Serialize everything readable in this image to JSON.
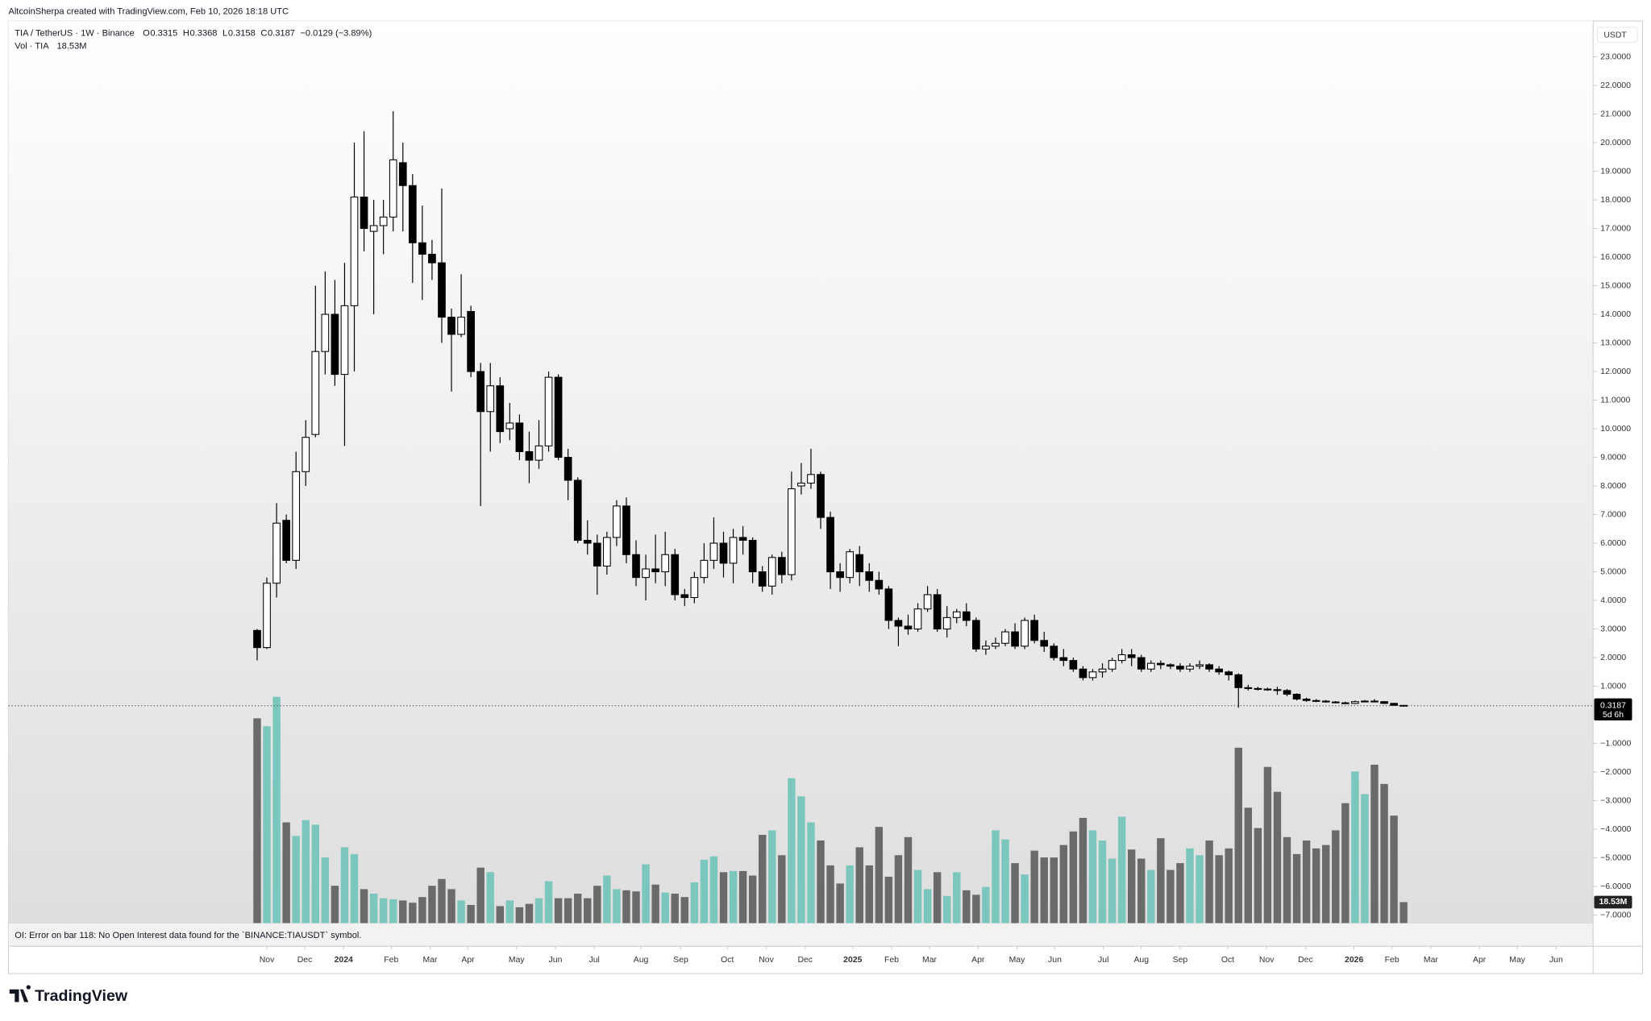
{
  "header": {
    "credit": "AltcoinSherpa created with TradingView.com, Feb 10, 2026 18:18 UTC",
    "logo": "TradingView"
  },
  "chart_data": {
    "type": "candlestick",
    "symbol": "TIA / TetherUS · 1W · Binance",
    "legend_labels": [
      "O",
      "H",
      "L",
      "C"
    ],
    "change": "−0.0129 (−3.89%)",
    "volume_title": "Vol · TIA",
    "last_volume_label": "18.53M",
    "currency": "USDT",
    "countdown": "5d 6h",
    "footer_note": "OI: Error on bar 118: No Open Interest data found for the `BINANCE:TIAUSDT` symbol.",
    "up_color": "#ffffff",
    "down_color": "#000000",
    "volume_up_color": "#7cc7bd",
    "volume_down_color": "#6a6a6a",
    "open": [
      2.95,
      2.35,
      4.6,
      6.8,
      5.4,
      8.5,
      9.8,
      12.7,
      14.0,
      11.9,
      14.3,
      18.1,
      16.9,
      17.1,
      17.4,
      19.3,
      18.5,
      16.5,
      16.1,
      15.8,
      13.9,
      13.3,
      14.1,
      12.0,
      10.6,
      11.5,
      10.0,
      10.2,
      9.2,
      8.9,
      9.4,
      11.8,
      9.0,
      8.2,
      6.1,
      6.0,
      5.2,
      6.2,
      7.3,
      5.6,
      4.8,
      5.1,
      5.0,
      5.6,
      4.2,
      4.1,
      4.8,
      5.4,
      6.0,
      5.3,
      6.2,
      6.1,
      5.0,
      4.5,
      5.5,
      4.9,
      8.0,
      8.1,
      8.4,
      6.9,
      5.0,
      4.8,
      5.6,
      5.0,
      4.7,
      4.4,
      3.3,
      3.1,
      3.0,
      3.7,
      4.2,
      3.0,
      3.4,
      3.6,
      3.3,
      2.3,
      2.4,
      2.5,
      2.9,
      2.4,
      3.3,
      2.6,
      2.4,
      2.0,
      1.9,
      1.6,
      1.3,
      1.5,
      1.6,
      1.9,
      2.1,
      2.0,
      1.6,
      1.8,
      1.75,
      1.7,
      1.6,
      1.7,
      1.75,
      1.6,
      1.5,
      1.4,
      0.95,
      0.92,
      0.9,
      0.88,
      0.85,
      0.72,
      0.55,
      0.5,
      0.48,
      0.45,
      0.42,
      0.4,
      0.46,
      0.48,
      0.46,
      0.4,
      0.3315
    ],
    "high": [
      3.0,
      4.8,
      7.4,
      7.0,
      9.2,
      10.3,
      15.0,
      15.5,
      15.2,
      15.8,
      20.0,
      20.4,
      18.0,
      18.0,
      21.1,
      20.0,
      18.9,
      17.8,
      16.6,
      18.4,
      14.2,
      15.4,
      14.3,
      12.3,
      12.3,
      11.8,
      10.9,
      10.5,
      9.9,
      10.3,
      12.0,
      11.9,
      9.3,
      8.3,
      6.8,
      6.3,
      6.4,
      7.5,
      7.6,
      6.1,
      5.6,
      6.3,
      6.4,
      5.8,
      4.4,
      5.0,
      6.0,
      6.9,
      6.4,
      6.5,
      6.6,
      6.2,
      5.2,
      5.6,
      5.7,
      8.5,
      8.8,
      9.3,
      8.5,
      7.1,
      5.3,
      5.8,
      5.9,
      5.3,
      5.0,
      4.5,
      3.4,
      3.5,
      3.9,
      4.5,
      4.4,
      3.8,
      3.7,
      3.9,
      3.4,
      2.6,
      2.7,
      3.0,
      3.2,
      3.4,
      3.5,
      2.9,
      2.5,
      2.3,
      2.0,
      1.7,
      1.6,
      1.8,
      2.0,
      2.3,
      2.3,
      2.1,
      1.9,
      1.9,
      1.8,
      1.8,
      1.8,
      1.9,
      1.8,
      1.7,
      1.55,
      1.45,
      1.05,
      0.98,
      0.95,
      0.98,
      0.9,
      0.75,
      0.6,
      0.55,
      0.52,
      0.48,
      0.46,
      0.5,
      0.52,
      0.55,
      0.48,
      0.42,
      0.3368
    ],
    "low": [
      1.9,
      2.3,
      4.1,
      5.3,
      5.1,
      8.0,
      9.7,
      11.9,
      11.5,
      9.4,
      12.0,
      16.2,
      14.0,
      16.1,
      16.9,
      16.9,
      15.1,
      14.5,
      15.2,
      13.0,
      11.3,
      13.2,
      11.8,
      7.3,
      9.2,
      9.5,
      9.6,
      8.9,
      8.1,
      8.6,
      9.2,
      8.9,
      7.5,
      6.0,
      5.6,
      4.2,
      4.9,
      5.9,
      5.3,
      4.5,
      4.0,
      4.6,
      4.5,
      4.0,
      3.8,
      3.9,
      4.6,
      5.1,
      4.8,
      4.6,
      5.6,
      4.6,
      4.3,
      4.2,
      4.6,
      4.7,
      7.7,
      7.9,
      6.5,
      4.4,
      4.3,
      4.6,
      4.5,
      4.3,
      4.2,
      3.0,
      2.4,
      2.8,
      2.9,
      3.6,
      2.9,
      2.7,
      3.2,
      3.1,
      2.2,
      2.1,
      2.3,
      2.4,
      2.3,
      2.3,
      2.5,
      2.2,
      1.9,
      1.7,
      1.5,
      1.2,
      1.2,
      1.3,
      1.5,
      1.8,
      1.7,
      1.5,
      1.5,
      1.6,
      1.6,
      1.5,
      1.5,
      1.6,
      1.5,
      1.4,
      1.2,
      0.25,
      0.85,
      0.85,
      0.84,
      0.7,
      0.65,
      0.5,
      0.45,
      0.44,
      0.42,
      0.4,
      0.38,
      0.38,
      0.44,
      0.44,
      0.38,
      0.32,
      0.3158
    ],
    "close": [
      2.35,
      4.6,
      6.7,
      5.4,
      8.5,
      9.7,
      12.7,
      14.0,
      11.9,
      14.3,
      18.1,
      17.0,
      17.1,
      17.4,
      19.4,
      18.5,
      16.5,
      16.1,
      15.8,
      13.9,
      13.3,
      13.9,
      12.0,
      10.6,
      11.5,
      9.9,
      10.2,
      9.2,
      8.9,
      9.4,
      11.8,
      9.0,
      8.2,
      6.1,
      6.0,
      5.2,
      6.2,
      7.3,
      5.6,
      4.8,
      5.1,
      5.0,
      5.6,
      4.2,
      4.1,
      4.8,
      5.4,
      6.0,
      5.3,
      6.2,
      6.1,
      5.0,
      4.5,
      5.5,
      4.9,
      7.9,
      8.1,
      8.4,
      6.9,
      5.0,
      4.8,
      5.7,
      5.0,
      4.7,
      4.4,
      3.3,
      3.1,
      3.0,
      3.7,
      4.2,
      3.0,
      3.4,
      3.6,
      3.3,
      2.3,
      2.4,
      2.5,
      2.9,
      2.4,
      3.3,
      2.6,
      2.4,
      2.0,
      1.9,
      1.6,
      1.3,
      1.5,
      1.6,
      1.9,
      2.1,
      2.0,
      1.6,
      1.8,
      1.75,
      1.7,
      1.6,
      1.7,
      1.75,
      1.6,
      1.5,
      1.4,
      0.95,
      0.92,
      0.9,
      0.88,
      0.85,
      0.72,
      0.55,
      0.5,
      0.48,
      0.45,
      0.42,
      0.4,
      0.46,
      0.48,
      0.46,
      0.4,
      0.3315,
      0.3187
    ],
    "volume": [
      181,
      174,
      200,
      89,
      77,
      91,
      87,
      58,
      33,
      67,
      61,
      30,
      26,
      22,
      21,
      20,
      18,
      23,
      33,
      39,
      30,
      20,
      16,
      49,
      45,
      15,
      20,
      14,
      17,
      22,
      37,
      22,
      22,
      26,
      22,
      33,
      42,
      30,
      29,
      28,
      52,
      34,
      27,
      26,
      23,
      36,
      56,
      59,
      45,
      46,
      46,
      42,
      78,
      82,
      60,
      128,
      112,
      89,
      73,
      51,
      35,
      51,
      67,
      51,
      85,
      41,
      60,
      76,
      47,
      30,
      45,
      24,
      45,
      29,
      25,
      32,
      82,
      74,
      53,
      43,
      64,
      58,
      58,
      69,
      81,
      93,
      82,
      73,
      57,
      94,
      65,
      57,
      47,
      75,
      47,
      53,
      66,
      60,
      73,
      60,
      66,
      155,
      102,
      84,
      138,
      116,
      76,
      61,
      73,
      66,
      69,
      82,
      106,
      134,
      114,
      140,
      123,
      95,
      18.53
    ],
    "ylim": [
      -7.28,
      24.25
    ],
    "yticks": [
      {
        "value": 23,
        "label": "23.0000"
      },
      {
        "value": 22,
        "label": "22.0000"
      },
      {
        "value": 21,
        "label": "21.0000"
      },
      {
        "value": 20,
        "label": "20.0000"
      },
      {
        "value": 19,
        "label": "19.0000"
      },
      {
        "value": 18,
        "label": "18.0000"
      },
      {
        "value": 17,
        "label": "17.0000"
      },
      {
        "value": 16,
        "label": "16.0000"
      },
      {
        "value": 15,
        "label": "15.0000"
      },
      {
        "value": 14,
        "label": "14.0000"
      },
      {
        "value": 13,
        "label": "13.0000"
      },
      {
        "value": 12,
        "label": "12.0000"
      },
      {
        "value": 11,
        "label": "11.0000"
      },
      {
        "value": 10,
        "label": "10.0000"
      },
      {
        "value": 9,
        "label": "9.0000"
      },
      {
        "value": 8,
        "label": "8.0000"
      },
      {
        "value": 7,
        "label": "7.0000"
      },
      {
        "value": 6,
        "label": "6.0000"
      },
      {
        "value": 5,
        "label": "5.0000"
      },
      {
        "value": 4,
        "label": "4.0000"
      },
      {
        "value": 3,
        "label": "3.0000"
      },
      {
        "value": 2,
        "label": "2.0000"
      },
      {
        "value": 1,
        "label": "1.0000"
      },
      {
        "value": -1,
        "label": "−1.0000"
      },
      {
        "value": -2,
        "label": "−2.0000"
      },
      {
        "value": -3,
        "label": "−3.0000"
      },
      {
        "value": -4,
        "label": "−4.0000"
      },
      {
        "value": -5,
        "label": "−5.0000"
      },
      {
        "value": -6,
        "label": "−6.0000"
      },
      {
        "value": -7,
        "label": "−7.0000"
      }
    ],
    "xlim": [
      -25.6,
      137.5
    ],
    "xticks": [
      {
        "value": 1.0,
        "label": "Nov"
      },
      {
        "value": 4.9,
        "label": "Dec"
      },
      {
        "value": 8.9,
        "label": "2024"
      },
      {
        "value": 13.8,
        "label": "Feb"
      },
      {
        "value": 17.8,
        "label": "Mar"
      },
      {
        "value": 21.7,
        "label": "Apr"
      },
      {
        "value": 26.7,
        "label": "May"
      },
      {
        "value": 30.7,
        "label": "Jun"
      },
      {
        "value": 34.7,
        "label": "Jul"
      },
      {
        "value": 39.5,
        "label": "Aug"
      },
      {
        "value": 43.6,
        "label": "Sep"
      },
      {
        "value": 48.4,
        "label": "Oct"
      },
      {
        "value": 52.4,
        "label": "Nov"
      },
      {
        "value": 56.4,
        "label": "Dec"
      },
      {
        "value": 61.3,
        "label": "2025"
      },
      {
        "value": 65.3,
        "label": "Feb"
      },
      {
        "value": 69.2,
        "label": "Mar"
      },
      {
        "value": 74.2,
        "label": "Apr"
      },
      {
        "value": 78.2,
        "label": "May"
      },
      {
        "value": 82.1,
        "label": "Jun"
      },
      {
        "value": 87.1,
        "label": "Jul"
      },
      {
        "value": 91.0,
        "label": "Aug"
      },
      {
        "value": 95.0,
        "label": "Sep"
      },
      {
        "value": 99.9,
        "label": "Oct"
      },
      {
        "value": 103.9,
        "label": "Nov"
      },
      {
        "value": 107.9,
        "label": "Dec"
      },
      {
        "value": 112.9,
        "label": "2026"
      },
      {
        "value": 116.8,
        "label": "Feb"
      },
      {
        "value": 120.8,
        "label": "Mar"
      },
      {
        "value": 125.8,
        "label": "Apr"
      },
      {
        "value": 129.7,
        "label": "May"
      },
      {
        "value": 133.7,
        "label": "Jun"
      }
    ]
  }
}
